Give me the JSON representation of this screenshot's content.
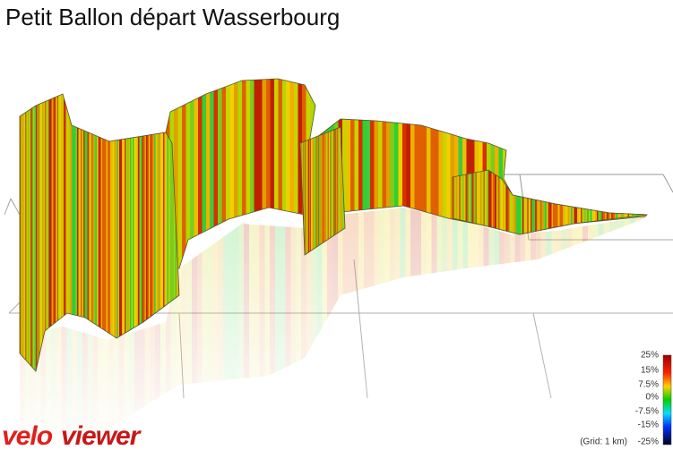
{
  "header": {
    "title": "Petit Ballon départ Wasserbourg"
  },
  "legend": {
    "labels": [
      "25%",
      "15%",
      "7.5%",
      "0%",
      "-7.5%",
      "-15%",
      "-25%"
    ],
    "note": "(Grid: 1 km)"
  },
  "logo": {
    "part1": "velo",
    "part2": "viewer"
  }
}
